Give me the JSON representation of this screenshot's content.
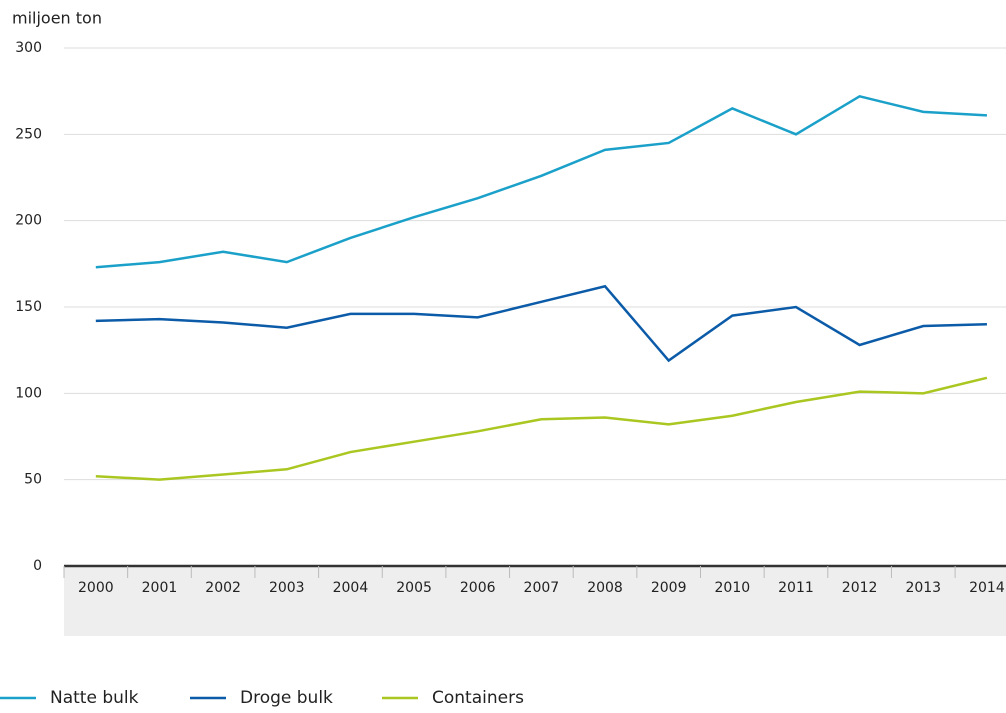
{
  "chart_data": {
    "type": "line",
    "y_label": "miljoen ton",
    "categories": [
      "2000",
      "2001",
      "2002",
      "2003",
      "2004",
      "2005",
      "2006",
      "2007",
      "2008",
      "2009",
      "2010",
      "2011",
      "2012",
      "2013",
      "2014"
    ],
    "series": [
      {
        "name": "Natte bulk",
        "color": "#1ba1c9",
        "values": [
          173,
          176,
          182,
          176,
          190,
          202,
          213,
          226,
          241,
          245,
          265,
          250,
          272,
          263,
          261
        ]
      },
      {
        "name": "Droge bulk",
        "color": "#0b5ba8",
        "values": [
          142,
          143,
          141,
          138,
          146,
          146,
          144,
          153,
          162,
          119,
          145,
          150,
          128,
          139,
          140
        ]
      },
      {
        "name": "Containers",
        "color": "#a9c720",
        "values": [
          52,
          50,
          53,
          56,
          66,
          72,
          78,
          85,
          86,
          82,
          87,
          95,
          101,
          100,
          109
        ]
      }
    ],
    "ylim": [
      0,
      300
    ],
    "yticks": [
      0,
      50,
      100,
      150,
      200,
      250,
      300
    ],
    "grid": true,
    "legend": "bottom"
  }
}
